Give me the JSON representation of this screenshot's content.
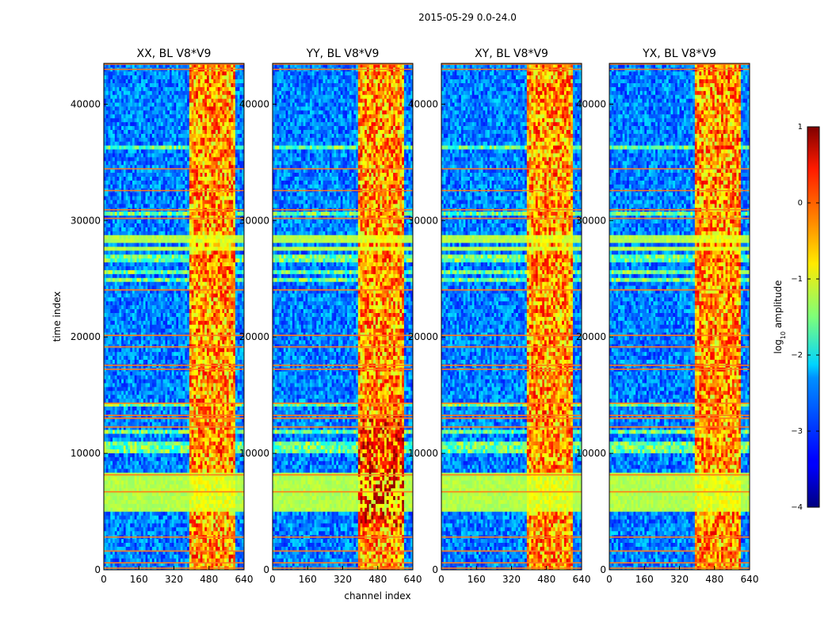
{
  "figure": {
    "suptitle": "2015-05-29 0.0-24.0"
  },
  "colorbar": {
    "label_prefix": "log",
    "label_sub": "10",
    "label_suffix": " amplitude",
    "ticks": [
      "1",
      "0",
      "−1",
      "−2",
      "−3",
      "−4"
    ],
    "range": [
      -4,
      1
    ],
    "colormap": "jet"
  },
  "chart_data": [
    {
      "type": "heatmap",
      "title": "XX, BL V8*V9",
      "xlabel": "",
      "ylabel": "time index",
      "xlim": [
        0,
        640
      ],
      "ylim": [
        0,
        43500
      ],
      "xticks": [
        "0",
        "160",
        "320",
        "480",
        "640"
      ],
      "yticks": [
        "0",
        "10000",
        "20000",
        "30000",
        "40000"
      ],
      "band_channels": [
        390,
        600
      ]
    },
    {
      "type": "heatmap",
      "title": "YY, BL V8*V9",
      "xlabel": "channel index",
      "ylabel": "",
      "xlim": [
        0,
        640
      ],
      "ylim": [
        0,
        43500
      ],
      "xticks": [
        "0",
        "160",
        "320",
        "480",
        "640"
      ],
      "yticks": [
        "0",
        "10000",
        "20000",
        "30000",
        "40000"
      ],
      "band_channels": [
        390,
        600
      ]
    },
    {
      "type": "heatmap",
      "title": "XY, BL V8*V9",
      "xlabel": "",
      "ylabel": "",
      "xlim": [
        0,
        640
      ],
      "ylim": [
        0,
        43500
      ],
      "xticks": [
        "0",
        "160",
        "320",
        "480",
        "640"
      ],
      "yticks": [
        "0",
        "10000",
        "20000",
        "30000",
        "40000"
      ],
      "band_channels": [
        390,
        600
      ]
    },
    {
      "type": "heatmap",
      "title": "YX, BL V8*V9",
      "xlabel": "",
      "ylabel": "",
      "xlim": [
        0,
        640
      ],
      "ylim": [
        0,
        43500
      ],
      "xticks": [
        "0",
        "160",
        "320",
        "480",
        "640"
      ],
      "yticks": [
        "0",
        "10000",
        "20000",
        "30000",
        "40000"
      ],
      "band_channels": [
        390,
        600
      ]
    }
  ]
}
